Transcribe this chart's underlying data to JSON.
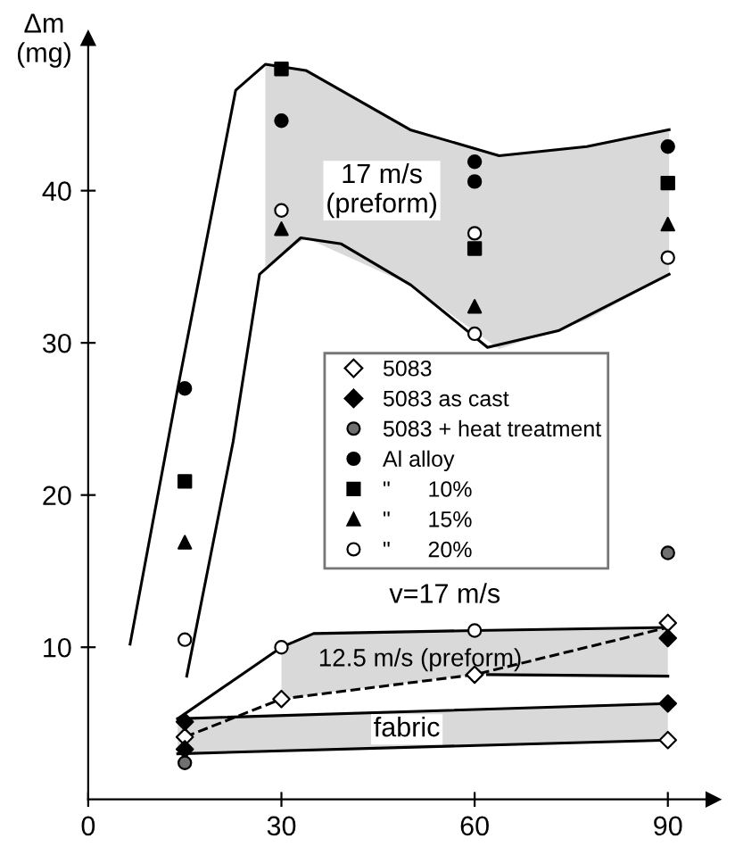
{
  "chart_data": {
    "type": "scatter",
    "ylabel": "Δm\n(mg)",
    "xlim": [
      0,
      97
    ],
    "ylim": [
      0,
      50
    ],
    "xticks": [
      0,
      30,
      60,
      90
    ],
    "yticks": [
      10,
      20,
      30,
      40
    ],
    "grid": false,
    "legend": "right",
    "series": [
      {
        "type": "line",
        "x": [
          6.5,
          13.9,
          22.9,
          27.5,
          33.8,
          50,
          63.8,
          77.4,
          90.2
        ],
        "values": [
          10.2,
          27.0,
          46.6,
          48.3,
          47.9,
          44.0,
          42.3,
          42.9,
          44.0
        ],
        "lower": [
          null,
          null,
          null,
          35.0,
          36.9,
          33.8,
          29.6,
          31.5,
          34.5
        ],
        "upper": [
          null,
          null,
          null,
          48.3,
          47.9,
          44.0,
          42.3,
          42.9,
          44.0
        ],
        "color": "#000000",
        "line_style": "solid"
      },
      {
        "type": "line",
        "x": [
          15.3,
          22.5,
          26.6,
          33,
          39.3,
          50.1,
          62,
          73,
          90.2
        ],
        "values": [
          8.1,
          23.5,
          34.5,
          36.9,
          36.5,
          33.8,
          29.7,
          30.8,
          34.5
        ],
        "color": "#000000",
        "line_style": "solid"
      },
      {
        "type": "line",
        "x": [
          13.9,
          30,
          35,
          60,
          90
        ],
        "values": [
          5.3,
          10.0,
          10.9,
          11.1,
          11.3
        ],
        "lower": [
          null,
          6.6,
          6.9,
          8.2,
          8.1
        ],
        "upper": [
          null,
          10.0,
          10.9,
          11.1,
          11.3
        ],
        "color": "#000000",
        "line_style": "solid"
      },
      {
        "type": "line",
        "x": [
          15,
          30,
          60,
          90
        ],
        "values": [
          4.1,
          6.6,
          8.2,
          11.3
        ],
        "color": "#000000",
        "line_style": "dashed"
      },
      {
        "type": "line",
        "x": [
          62,
          90
        ],
        "values": [
          8.2,
          8.1
        ],
        "color": "#000000",
        "line_style": "solid"
      },
      {
        "type": "line",
        "x": [
          13.9,
          90
        ],
        "values": [
          5.3,
          6.3
        ],
        "lower": [
          3.0,
          3.9
        ],
        "upper": [
          5.3,
          6.3
        ],
        "color": "#000000",
        "line_style": "solid"
      },
      {
        "type": "line",
        "x": [
          13.9,
          90
        ],
        "values": [
          3.0,
          3.9
        ],
        "color": "#000000",
        "line_style": "solid"
      },
      {
        "name": "5083",
        "marker": "diamond",
        "color": "#ffffff",
        "x": [
          15,
          30,
          60,
          90,
          90
        ],
        "values": [
          4.1,
          6.6,
          8.2,
          11.6,
          3.9
        ]
      },
      {
        "name": "5083 as cast",
        "marker": "diamond",
        "color": "#000000",
        "x": [
          15,
          15,
          90,
          90
        ],
        "values": [
          5.1,
          3.3,
          10.6,
          6.3
        ]
      },
      {
        "name": "5083 + heat treatment",
        "marker": "circle",
        "color": "#707070",
        "x": [
          15,
          90
        ],
        "values": [
          2.4,
          16.2
        ]
      },
      {
        "name": "Al alloy",
        "marker": "circle",
        "color": "#000000",
        "x": [
          15,
          30,
          60,
          60,
          90
        ],
        "values": [
          27.0,
          44.6,
          41.9,
          40.6,
          42.9
        ]
      },
      {
        "name": "\"      10%",
        "marker": "square",
        "color": "#000000",
        "x": [
          15,
          30,
          60,
          90
        ],
        "values": [
          20.9,
          48.0,
          36.2,
          40.5
        ]
      },
      {
        "name": "\"      15%",
        "marker": "triangle",
        "color": "#000000",
        "x": [
          15,
          30,
          60,
          90
        ],
        "values": [
          16.9,
          37.5,
          32.4,
          37.8
        ]
      },
      {
        "name": "\"      20%",
        "marker": "circle",
        "color": "#ffffff",
        "x": [
          15,
          30,
          60,
          60,
          90,
          30,
          60
        ],
        "values": [
          10.5,
          38.7,
          37.2,
          30.6,
          35.6,
          10.0,
          11.1
        ]
      }
    ],
    "annotations": [
      "17 m/s\n(preform)",
      {
        "text": "v=17 m/s",
        "x": 60,
        "y": 11.1
      },
      {
        "text": "12.5 m/s (preform)",
        "x": 60,
        "y": 8.2
      },
      "fabric"
    ]
  }
}
